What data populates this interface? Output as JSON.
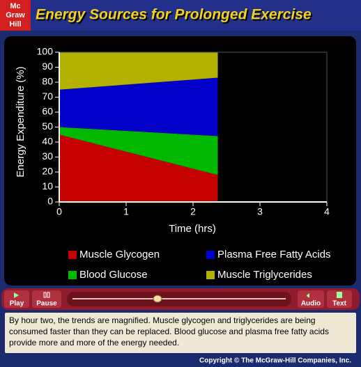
{
  "header": {
    "logo": [
      "Mc",
      "Graw",
      "Hill"
    ],
    "title": "Energy Sources for Prolonged Exercise"
  },
  "chart_data": {
    "type": "area",
    "stacked": true,
    "x": [
      0,
      2.37
    ],
    "series": [
      {
        "name": "Muscle Glycogen",
        "color": "#c40000",
        "values": [
          45,
          18
        ]
      },
      {
        "name": "Blood Glucose",
        "color": "#00b800",
        "values": [
          5,
          26
        ]
      },
      {
        "name": "Plasma Free Fatty Acids",
        "color": "#0000c8",
        "values": [
          25,
          39
        ]
      },
      {
        "name": "Muscle Triglycerides",
        "color": "#b4b000",
        "values": [
          25,
          17
        ]
      }
    ],
    "x_label": "Time (hrs)",
    "y_label": "Energy Expenditure (%)",
    "xlim": [
      0,
      4
    ],
    "xticks": [
      0,
      1,
      2,
      3,
      4
    ],
    "ylim": [
      0,
      100
    ],
    "yticks": [
      0,
      10,
      20,
      30,
      40,
      50,
      60,
      70,
      80,
      90,
      100
    ]
  },
  "controls": {
    "play": "Play",
    "pause": "Pause",
    "audio": "Audio",
    "text": "Text"
  },
  "caption": "By hour two, the trends are magnified. Muscle glycogen and triglycerides are being consumed faster than they can be replaced. Blood glucose and plasma free fatty acids provide more and more of the energy needed.",
  "copyright": "Copyright © The McGraw-Hill Companies, Inc."
}
